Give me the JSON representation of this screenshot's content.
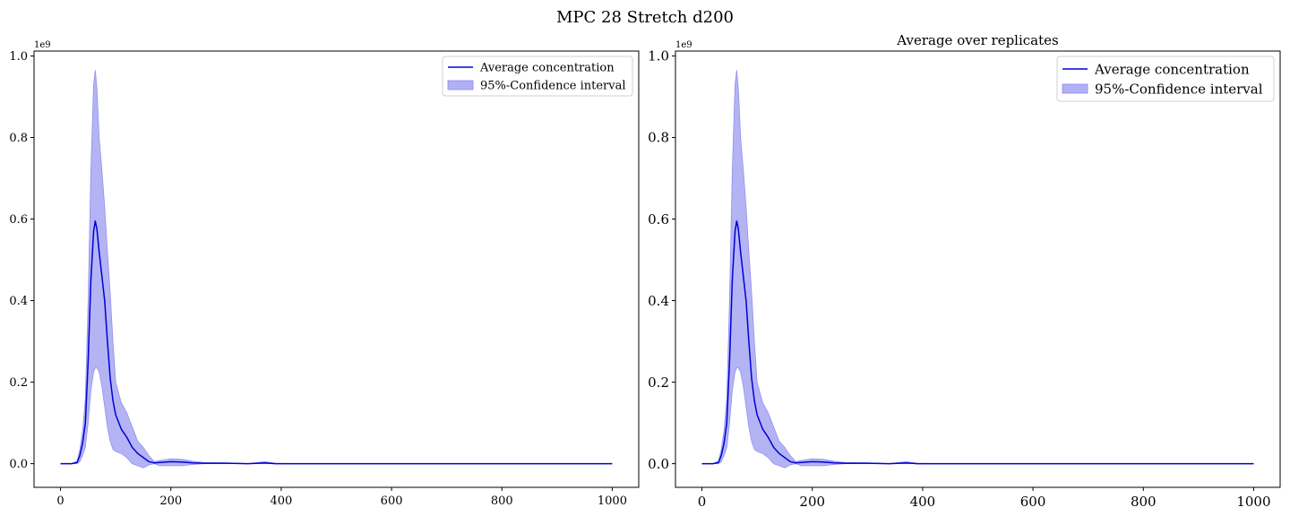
{
  "figure": {
    "suptitle": "MPC 28 Stretch d200"
  },
  "colors": {
    "line": "#0000d6",
    "band_fill": "#b0b0f5",
    "band_edge": "#8a8af0",
    "axes": "#000000"
  },
  "chart_data": [
    {
      "type": "line",
      "title": "",
      "xlabel": "",
      "ylabel": "",
      "y_multiplier_label": "1e9",
      "xlim": [
        -48,
        1048
      ],
      "ylim": [
        -0.058,
        1.012
      ],
      "xticks": [
        0,
        200,
        400,
        600,
        800,
        1000
      ],
      "yticks": [
        0.0,
        0.2,
        0.4,
        0.6,
        0.8,
        1.0
      ],
      "ytick_labels": [
        "0.0",
        "0.2",
        "0.4",
        "0.6",
        "0.8",
        "1.0"
      ],
      "grid": false,
      "legend_position": "upper right",
      "legend": [
        "Average concentration",
        "95%-Confidence interval"
      ],
      "series": [
        {
          "name": "Average concentration",
          "kind": "line",
          "x": [
            0,
            20,
            30,
            35,
            40,
            45,
            50,
            55,
            60,
            63,
            66,
            70,
            75,
            80,
            85,
            90,
            95,
            100,
            110,
            120,
            130,
            140,
            150,
            160,
            170,
            180,
            200,
            220,
            240,
            260,
            300,
            340,
            370,
            390,
            420,
            500,
            600,
            800,
            1000
          ],
          "y": [
            0.0,
            0.0,
            0.003,
            0.02,
            0.05,
            0.1,
            0.25,
            0.45,
            0.57,
            0.595,
            0.575,
            0.52,
            0.46,
            0.4,
            0.3,
            0.21,
            0.155,
            0.12,
            0.085,
            0.065,
            0.04,
            0.025,
            0.015,
            0.005,
            0.002,
            0.003,
            0.005,
            0.004,
            0.002,
            0.001,
            0.001,
            0.0,
            0.002,
            0.0,
            0.0,
            0.0,
            0.0,
            0.0,
            0.0
          ]
        },
        {
          "name": "95%-Confidence interval",
          "kind": "band",
          "x": [
            0,
            20,
            30,
            35,
            40,
            45,
            50,
            55,
            60,
            63,
            66,
            70,
            75,
            80,
            85,
            90,
            95,
            100,
            110,
            120,
            130,
            140,
            150,
            160,
            170,
            180,
            200,
            220,
            240,
            260,
            300,
            340,
            370,
            390,
            420,
            500,
            600,
            800,
            1000
          ],
          "lower": [
            0.0,
            0.0,
            0.0,
            0.005,
            0.02,
            0.04,
            0.1,
            0.18,
            0.225,
            0.235,
            0.235,
            0.225,
            0.19,
            0.14,
            0.09,
            0.055,
            0.035,
            0.03,
            0.025,
            0.015,
            0.0,
            -0.005,
            -0.01,
            -0.003,
            0.0,
            -0.005,
            -0.005,
            -0.005,
            -0.002,
            0.0,
            0.0,
            0.0,
            0.0,
            0.0,
            0.0,
            0.0,
            0.0,
            0.0,
            0.0
          ],
          "upper": [
            0.0,
            0.0,
            0.006,
            0.035,
            0.08,
            0.16,
            0.4,
            0.72,
            0.93,
            0.965,
            0.92,
            0.8,
            0.72,
            0.63,
            0.52,
            0.42,
            0.3,
            0.2,
            0.15,
            0.125,
            0.09,
            0.055,
            0.04,
            0.02,
            0.005,
            0.008,
            0.012,
            0.011,
            0.006,
            0.003,
            0.002,
            0.0,
            0.005,
            0.001,
            0.0,
            0.0,
            0.0,
            0.0,
            0.0
          ]
        }
      ]
    },
    {
      "type": "line",
      "title": "Average over replicates",
      "xlabel": "",
      "ylabel": "",
      "y_multiplier_label": "1e9",
      "xlim": [
        -48,
        1048
      ],
      "ylim": [
        -0.058,
        1.012
      ],
      "xticks": [
        0,
        200,
        400,
        600,
        800,
        1000
      ],
      "yticks": [
        0.0,
        0.2,
        0.4,
        0.6,
        0.8,
        1.0
      ],
      "ytick_labels": [
        "0.0",
        "0.2",
        "0.4",
        "0.6",
        "0.8",
        "1.0"
      ],
      "grid": false,
      "legend_position": "upper right",
      "legend": [
        "Average concentration",
        "95%-Confidence interval"
      ],
      "series": [
        {
          "name": "Average concentration",
          "kind": "line",
          "x": [
            0,
            20,
            30,
            35,
            40,
            45,
            50,
            55,
            60,
            63,
            66,
            70,
            75,
            80,
            85,
            90,
            95,
            100,
            110,
            120,
            130,
            140,
            150,
            160,
            170,
            180,
            200,
            220,
            240,
            260,
            300,
            340,
            370,
            390,
            420,
            500,
            600,
            800,
            1000
          ],
          "y": [
            0.0,
            0.0,
            0.003,
            0.02,
            0.05,
            0.1,
            0.25,
            0.45,
            0.57,
            0.595,
            0.575,
            0.52,
            0.46,
            0.4,
            0.3,
            0.21,
            0.155,
            0.12,
            0.085,
            0.065,
            0.04,
            0.025,
            0.015,
            0.005,
            0.002,
            0.003,
            0.005,
            0.004,
            0.002,
            0.001,
            0.001,
            0.0,
            0.002,
            0.0,
            0.0,
            0.0,
            0.0,
            0.0,
            0.0
          ]
        },
        {
          "name": "95%-Confidence interval",
          "kind": "band",
          "x": [
            0,
            20,
            30,
            35,
            40,
            45,
            50,
            55,
            60,
            63,
            66,
            70,
            75,
            80,
            85,
            90,
            95,
            100,
            110,
            120,
            130,
            140,
            150,
            160,
            170,
            180,
            200,
            220,
            240,
            260,
            300,
            340,
            370,
            390,
            420,
            500,
            600,
            800,
            1000
          ],
          "lower": [
            0.0,
            0.0,
            0.0,
            0.005,
            0.02,
            0.04,
            0.1,
            0.18,
            0.225,
            0.235,
            0.235,
            0.225,
            0.19,
            0.14,
            0.09,
            0.055,
            0.035,
            0.03,
            0.025,
            0.015,
            0.0,
            -0.005,
            -0.01,
            -0.003,
            0.0,
            -0.005,
            -0.005,
            -0.005,
            -0.002,
            0.0,
            0.0,
            0.0,
            0.0,
            0.0,
            0.0,
            0.0,
            0.0,
            0.0,
            0.0
          ],
          "upper": [
            0.0,
            0.0,
            0.006,
            0.035,
            0.08,
            0.16,
            0.4,
            0.72,
            0.93,
            0.965,
            0.92,
            0.8,
            0.72,
            0.63,
            0.52,
            0.42,
            0.3,
            0.2,
            0.15,
            0.125,
            0.09,
            0.055,
            0.04,
            0.02,
            0.005,
            0.008,
            0.012,
            0.011,
            0.006,
            0.003,
            0.002,
            0.0,
            0.005,
            0.001,
            0.0,
            0.0,
            0.0,
            0.0,
            0.0
          ]
        }
      ]
    }
  ]
}
